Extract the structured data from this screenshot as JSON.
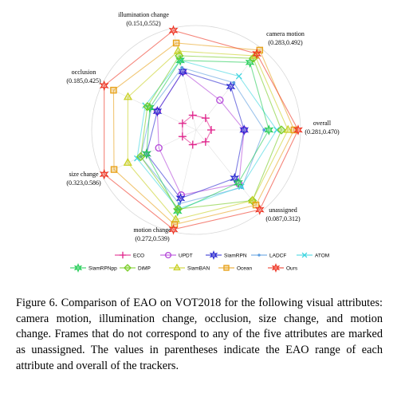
{
  "chart_data": {
    "type": "radar",
    "axes": [
      {
        "name": "overall",
        "range": "(0.281,0.470)",
        "min": 0.281,
        "max": 0.47
      },
      {
        "name": "camera motion",
        "range": "(0.283,0.492)",
        "min": 0.283,
        "max": 0.492
      },
      {
        "name": "illumination change",
        "range": "(0.151,0.552)",
        "min": 0.151,
        "max": 0.552
      },
      {
        "name": "occlusion",
        "range": "(0.185,0.425)",
        "min": 0.185,
        "max": 0.425
      },
      {
        "name": "size change",
        "range": "(0.323,0.586)",
        "min": 0.323,
        "max": 0.586
      },
      {
        "name": "motion change",
        "range": "(0.272,0.539)",
        "min": 0.272,
        "max": 0.539
      },
      {
        "name": "unassigned",
        "range": "(0.087,0.312)",
        "min": 0.087,
        "max": 0.312
      }
    ],
    "series": [
      {
        "name": "ECO",
        "color": "#e0218a",
        "marker": "plus",
        "values": [
          0.281,
          0.283,
          0.151,
          0.185,
          0.323,
          0.272,
          0.087
        ]
      },
      {
        "name": "UPDT",
        "color": "#b344d8",
        "marker": "circle",
        "values": [
          0.3525,
          0.4117,
          0.3894,
          0.2575,
          0.4074,
          0.4094,
          0.1465
        ]
      },
      {
        "name": "SiamRPN",
        "color": "#2a28d0",
        "marker": "star",
        "values": [
          0.3525,
          0.3951,
          0.4049,
          0.295,
          0.4074,
          0.4094,
          0.1915
        ]
      },
      {
        "name": "LADCF",
        "color": "#5b9de0",
        "marker": "dot",
        "values": [
          0.396,
          0.4235,
          0.4306,
          0.3129,
          0.4268,
          0.4214,
          0.2042
        ]
      },
      {
        "name": "ATOM",
        "color": "#3ed5e0",
        "marker": "x",
        "values": [
          0.4234,
          0.4212,
          0.4551,
          0.3242,
          0.448,
          0.4446,
          0.2258
        ]
      },
      {
        "name": "SiamRPNpp",
        "color": "#22cc55",
        "marker": "star",
        "values": [
          0.4064,
          0.4093,
          0.4654,
          0.295,
          0.4325,
          0.4446,
          0.2715
        ]
      },
      {
        "name": "DiMP",
        "color": "#77cc22",
        "marker": "diamond",
        "values": [
          0.4337,
          0.4638,
          0.4551,
          0.3129,
          0.4407,
          0.4592,
          0.285
        ]
      },
      {
        "name": "SiamBAN",
        "color": "#c8d022",
        "marker": "triangle",
        "values": [
          0.4479,
          0.4638,
          0.5058,
          0.3526,
          0.5062,
          0.4739,
          0.2931
        ]
      },
      {
        "name": "Ocean",
        "color": "#e8a21a",
        "marker": "square",
        "values": [
          0.4611,
          0.4774,
          0.5287,
          0.3948,
          0.5545,
          0.4994,
          0.312
        ]
      },
      {
        "name": "Ours",
        "color": "#ee3322",
        "marker": "star",
        "values": [
          0.47,
          0.492,
          0.552,
          0.425,
          0.586,
          0.539,
          0.3
        ]
      }
    ],
    "legend_position": "bottom"
  },
  "caption": "Figure 6. Comparison of EAO on VOT2018 for the following visual attributes: camera motion, illumination change, occlusion, size change, and motion change. Frames that do not correspond to any of the five attributes are marked as unassigned. The values in parentheses indicate the EAO range of each attribute and overall of the trackers."
}
